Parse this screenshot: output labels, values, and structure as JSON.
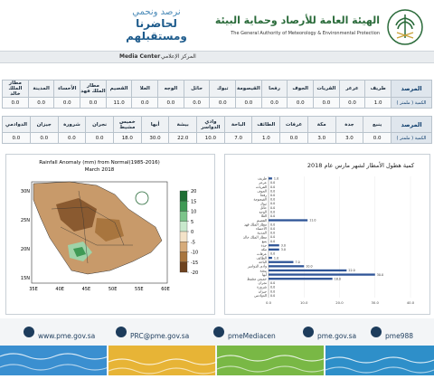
{
  "header": {
    "org_ar": "الهيئة العامة للأرصاد وحماية البيئة",
    "org_en": "The General Authority of Meteorology & Environmental Protection",
    "slogan1": "نرصد ونحمي",
    "slogan2": "لحاضرنا ومستقبلهم",
    "media_en": "Media Center",
    "media_ar": "المركز الإعلامي"
  },
  "tables": [
    {
      "header_label": "المرصد",
      "value_label": "الكمية ( ملمتر )",
      "stations": [
        "طريف",
        "عرعر",
        "القريات",
        "الجوف",
        "رفحا",
        "القيصومة",
        "تبوك",
        "حائل",
        "الوجه",
        "العلا",
        "القصيم",
        "مطار الملك فهد",
        "الأحساء",
        "المدينة",
        "مطار الملك خالد"
      ],
      "values": [
        "1.0",
        "0.0",
        "0.0",
        "0.0",
        "0.0",
        "0.0",
        "0.0",
        "0.0",
        "0.0",
        "0.0",
        "11.0",
        "0.0",
        "0.0",
        "0.0",
        "0.0"
      ]
    },
    {
      "header_label": "المرصد",
      "value_label": "الكمية ( ملمتر )",
      "stations": [
        "ينبع",
        "جدة",
        "مكة",
        "عرفات",
        "الطائف",
        "الباحة",
        "وادي الدواسر",
        "بيشة",
        "أبها",
        "خميس مشيط",
        "نجران",
        "شرورة",
        "جيزان",
        "الدوادمي"
      ],
      "values": [
        "0.0",
        "3.0",
        "3.0",
        "0.0",
        "1.0",
        "7.0",
        "10.0",
        "22.0",
        "30.0",
        "18.0",
        "0.0",
        "0.0",
        "0.0",
        "0.0"
      ]
    }
  ],
  "map": {
    "title": "Rainfall Anomaly (mm) from Normal(1985-2016)",
    "subtitle": "March 2018",
    "lat_labels": [
      "30N",
      "25N",
      "20N",
      "15N"
    ],
    "lon_labels": [
      "35E",
      "40E",
      "45E",
      "50E",
      "55E",
      "60E"
    ],
    "colorbar_ticks": [
      20,
      15,
      10,
      5,
      0,
      -5,
      -10,
      -15,
      -20
    ]
  },
  "chart_data": {
    "type": "bar",
    "orientation": "horizontal",
    "title": "كمية هطول الأمطار لشهر مارس عام 2018",
    "categories": [
      "طريف",
      "عرعر",
      "القريات",
      "الجوف",
      "رفحا",
      "القيصومة",
      "تبوك",
      "حائل",
      "الوجه",
      "العلا",
      "القصيم",
      "مطار الملك فهد",
      "الأحساء",
      "المدينة",
      "مطار الملك خالد",
      "ينبع",
      "جدة",
      "مكة",
      "عرفات",
      "الطائف",
      "الباحة",
      "وادي الدواسر",
      "بيشة",
      "أبها",
      "خميس مشيط",
      "نجران",
      "شرورة",
      "جيزان",
      "الدوادمي"
    ],
    "values": [
      1,
      0,
      0,
      0,
      0,
      0,
      0,
      0,
      0,
      0,
      11,
      0,
      0,
      0,
      0,
      0,
      3,
      3,
      0,
      1,
      7,
      10,
      22,
      30,
      18,
      0,
      0,
      0,
      0
    ],
    "value_labels": [
      "1.0",
      "0.0",
      "0.0",
      "0.0",
      "0.0",
      "0.0",
      "0.0",
      "0.0",
      "0.0",
      "0.0",
      "11.0",
      "0.0",
      "0.0",
      "0.0",
      "0.0",
      "0.0",
      "3.0",
      "3.0",
      "0.0",
      "1.0",
      "7.0",
      "10.0",
      "22.0",
      "30.0",
      "18.0",
      "0.0",
      "0.0",
      "0.0",
      "0.0"
    ],
    "color": "#2f5597",
    "xlim": [
      0,
      40
    ],
    "xticks": [
      {
        "value": 0,
        "label": "0.0"
      },
      {
        "value": 10,
        "label": "10.0"
      },
      {
        "value": 20,
        "label": "20.0"
      },
      {
        "value": 30,
        "label": "30.0"
      },
      {
        "value": 40,
        "label": "40.0"
      }
    ],
    "grid": true
  },
  "footer": {
    "website": "www.pme.gov.sa",
    "email": "PRC@pme.gov.sa",
    "twitter": "pmeMediacen",
    "facebook": "pme.gov.sa",
    "phone": "pme988"
  }
}
